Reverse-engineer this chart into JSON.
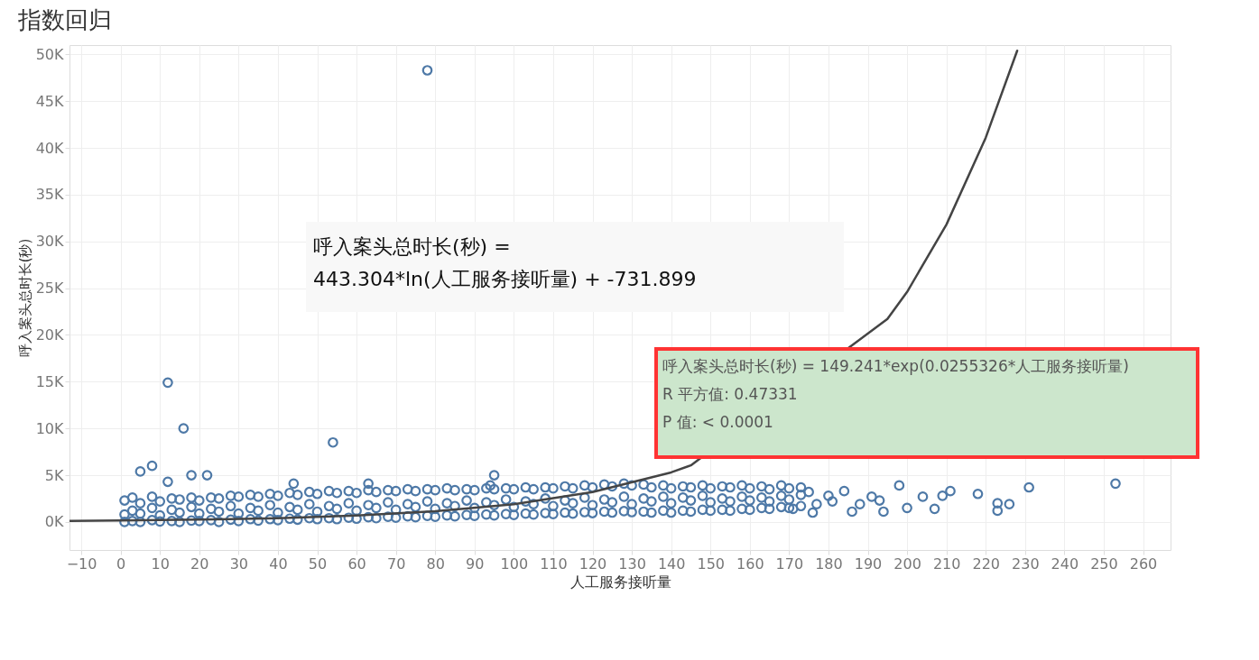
{
  "chart_data": {
    "type": "scatter",
    "title": "指数回归",
    "xlabel": "人工服务接听量",
    "ylabel": "呼入案头总时长(秒)",
    "xlim": [
      -13,
      267
    ],
    "xticks": [
      -10,
      0,
      10,
      20,
      30,
      40,
      50,
      60,
      70,
      80,
      90,
      100,
      110,
      120,
      130,
      140,
      150,
      160,
      170,
      180,
      190,
      200,
      210,
      220,
      230,
      240,
      250,
      260
    ],
    "ylim": [
      -3000,
      51000
    ],
    "yticks": [
      {
        "value": 0,
        "label": "0K"
      },
      {
        "value": 5000,
        "label": "5K"
      },
      {
        "value": 10000,
        "label": "10K"
      },
      {
        "value": 15000,
        "label": "15K"
      },
      {
        "value": 20000,
        "label": "20K"
      },
      {
        "value": 25000,
        "label": "25K"
      },
      {
        "value": 30000,
        "label": "30K"
      },
      {
        "value": 35000,
        "label": "35K"
      },
      {
        "value": 40000,
        "label": "40K"
      },
      {
        "value": 45000,
        "label": "45K"
      },
      {
        "value": 50000,
        "label": "50K"
      }
    ],
    "grid": true,
    "annotations": [
      "呼入案头总时长(秒) =\n443.304*ln(人工服务接听量) + -731.899",
      "呼入案头总时长(秒) = 149.241*exp(0.0255326*人工服务接听量)\nR 平方值: 0.47331\nP 值: < 0.0001"
    ],
    "series": [
      {
        "color": "#4e79a7",
        "marker": "circle",
        "x": [
          1,
          1,
          1,
          3,
          3,
          3,
          5,
          5,
          5,
          8,
          8,
          8,
          10,
          10,
          10,
          13,
          13,
          13,
          15,
          15,
          15,
          18,
          18,
          18,
          20,
          20,
          20,
          23,
          23,
          23,
          25,
          25,
          25,
          28,
          28,
          28,
          30,
          30,
          30,
          33,
          33,
          33,
          35,
          35,
          35,
          38,
          38,
          38,
          40,
          40,
          40,
          43,
          43,
          43,
          45,
          45,
          45,
          48,
          48,
          48,
          50,
          50,
          50,
          53,
          53,
          53,
          55,
          55,
          55,
          58,
          58,
          58,
          60,
          60,
          60,
          63,
          63,
          63,
          65,
          65,
          65,
          68,
          68,
          68,
          70,
          70,
          70,
          73,
          73,
          73,
          75,
          75,
          75,
          78,
          78,
          78,
          80,
          80,
          80,
          83,
          83,
          83,
          85,
          85,
          85,
          88,
          88,
          88,
          90,
          90,
          90,
          93,
          93,
          93,
          95,
          95,
          95,
          98,
          98,
          98,
          100,
          100,
          100,
          103,
          103,
          103,
          105,
          105,
          105,
          108,
          108,
          108,
          110,
          110,
          110,
          113,
          113,
          113,
          115,
          115,
          115,
          118,
          118,
          118,
          120,
          120,
          120,
          123,
          123,
          123,
          125,
          125,
          125,
          128,
          128,
          128,
          130,
          130,
          130,
          133,
          133,
          133,
          135,
          135,
          135,
          138,
          138,
          138,
          140,
          140,
          140,
          143,
          143,
          143,
          145,
          145,
          145,
          148,
          148,
          148,
          150,
          150,
          150,
          153,
          153,
          153,
          155,
          155,
          155,
          158,
          158,
          158,
          160,
          160,
          160,
          163,
          163,
          163,
          165,
          165,
          165,
          168,
          168,
          168,
          170,
          170,
          170,
          173,
          173,
          173,
          78,
          12,
          16,
          54,
          8,
          5,
          22,
          18,
          12,
          95,
          253,
          231,
          226,
          223,
          223,
          218,
          211,
          209,
          207,
          204,
          200,
          198,
          194,
          191,
          188,
          184,
          180,
          177,
          175,
          186,
          181,
          193,
          171,
          176,
          44,
          63,
          94
        ],
        "values": [
          0,
          800,
          2300,
          100,
          1200,
          2600,
          0,
          900,
          2000,
          200,
          1500,
          2700,
          50,
          700,
          2200,
          100,
          1300,
          2500,
          0,
          1000,
          2400,
          150,
          1600,
          2600,
          100,
          900,
          2300,
          200,
          1400,
          2600,
          0,
          1100,
          2500,
          250,
          1700,
          2800,
          100,
          900,
          2700,
          300,
          1500,
          2900,
          150,
          1200,
          2700,
          300,
          1800,
          3000,
          200,
          1000,
          2800,
          350,
          1600,
          3100,
          250,
          1300,
          2900,
          400,
          1900,
          3200,
          300,
          1100,
          3000,
          400,
          1700,
          3300,
          300,
          1400,
          3100,
          450,
          2000,
          3300,
          350,
          1200,
          3100,
          500,
          1800,
          3400,
          400,
          1500,
          3200,
          550,
          2100,
          3400,
          450,
          1300,
          3300,
          600,
          1900,
          3500,
          500,
          1600,
          3300,
          650,
          2200,
          3500,
          550,
          1400,
          3400,
          700,
          2000,
          3600,
          600,
          1700,
          3400,
          750,
          2300,
          3500,
          650,
          1500,
          3400,
          800,
          2100,
          3600,
          700,
          1800,
          3500,
          850,
          2400,
          3600,
          750,
          1600,
          3500,
          900,
          2200,
          3700,
          800,
          1900,
          3500,
          950,
          2500,
          3700,
          850,
          1700,
          3600,
          1000,
          2300,
          3800,
          900,
          2000,
          3600,
          1050,
          2600,
          3900,
          950,
          1800,
          3700,
          1100,
          2400,
          4000,
          1000,
          2100,
          3800,
          1150,
          2700,
          4100,
          1050,
          1900,
          3900,
          1100,
          2500,
          4000,
          1000,
          2200,
          3700,
          1200,
          2700,
          3900,
          1000,
          2000,
          3600,
          1200,
          2600,
          3800,
          1100,
          2300,
          3700,
          1300,
          2800,
          3900,
          1200,
          2100,
          3600,
          1300,
          2500,
          3800,
          1200,
          2200,
          3700,
          1400,
          2700,
          3900,
          1300,
          2300,
          3600,
          1500,
          2600,
          3800,
          1400,
          2200,
          3500,
          1600,
          2800,
          3900,
          1500,
          2400,
          3600,
          1700,
          2900,
          3700,
          48300,
          14900,
          10000,
          8500,
          6000,
          5400,
          5000,
          5000,
          4300,
          5000,
          4100,
          3700,
          1900,
          2000,
          1200,
          3000,
          3300,
          2800,
          1400,
          2700,
          1500,
          3900,
          1100,
          2700,
          1900,
          3300,
          2800,
          1900,
          3200,
          1100,
          2200,
          2300,
          1400,
          1000,
          4100,
          4100,
          3900
        ]
      },
      {
        "type": "line",
        "color": "#444444",
        "line_style": "solid",
        "x": [
          -13,
          0,
          20,
          40,
          60,
          80,
          100,
          120,
          140,
          145,
          195,
          200,
          210,
          220,
          228
        ],
        "values": [
          100,
          150,
          250,
          400,
          700,
          1150,
          1900,
          3200,
          5300,
          6050,
          21700,
          24600,
          31800,
          41100,
          50400
        ]
      }
    ]
  }
}
